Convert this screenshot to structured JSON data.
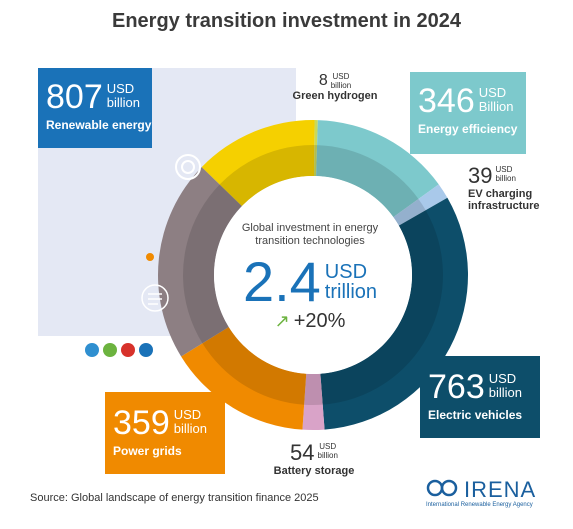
{
  "title": "Energy transition investment in 2024",
  "center": {
    "description": "Global investment in energy transition technologies",
    "value": "2.4",
    "unit_line1": "USD",
    "unit_line2": "trillion",
    "growth": "+20%"
  },
  "labels": {
    "renewable": {
      "value": "807",
      "unit1": "USD",
      "unit2": "billion",
      "name": "Renewable energy"
    },
    "hydrogen": {
      "value": "8",
      "unit1": "USD",
      "unit2": "billion",
      "name": "Green hydrogen"
    },
    "efficiency": {
      "value": "346",
      "unit1": "USD",
      "unit2": "Billion",
      "name": "Energy efficiency"
    },
    "charging": {
      "value": "39",
      "unit1": "USD",
      "unit2": "billion",
      "name_line1": "EV charging",
      "name_line2": "infrastructure"
    },
    "ev": {
      "value": "763",
      "unit1": "USD",
      "unit2": "billion",
      "name": "Electric vehicles"
    },
    "battery": {
      "value": "54",
      "unit1": "USD",
      "unit2": "billion",
      "name": "Battery storage"
    },
    "grids": {
      "value": "359",
      "unit1": "USD",
      "unit2": "billion",
      "name": "Power grids"
    }
  },
  "source": "Source: Global landscape of energy transition finance 2025",
  "logo": {
    "name": "IRENA",
    "subtitle": "International Renewable Energy Agency"
  },
  "colors": {
    "renewable_solar": "#f5d000",
    "renewable_wind": "#8d7f83",
    "hydrogen": "#c9d95a",
    "efficiency": "#7dc9cc",
    "charging": "#a9c9ea",
    "ev": "#0d4e6a",
    "battery": "#d9a3c8",
    "grids": "#f08a00",
    "accent": "#1a72b8"
  },
  "chart_data": {
    "type": "pie",
    "title": "Energy transition investment in 2024",
    "unit": "USD billion",
    "categories": [
      "Green hydrogen",
      "Energy efficiency",
      "EV charging infrastructure",
      "Electric vehicles",
      "Battery storage",
      "Power grids",
      "Renewable energy"
    ],
    "values": [
      8,
      346,
      39,
      763,
      54,
      359,
      807
    ],
    "total": "2.4 USD trillion"
  }
}
